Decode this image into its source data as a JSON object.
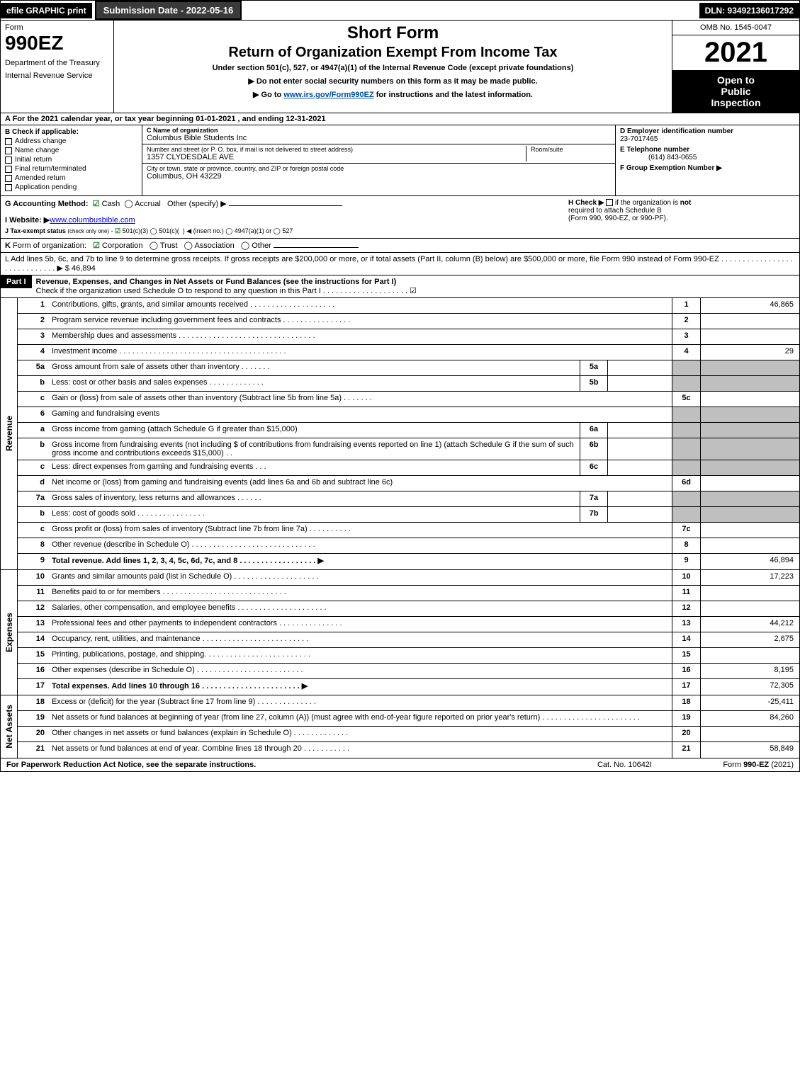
{
  "top": {
    "efile": "efile GRAPHIC print",
    "submission": "Submission Date - 2022-05-16",
    "dln": "DLN: 93492136017292"
  },
  "header": {
    "form_word": "Form",
    "form_num": "990EZ",
    "dept1": "Department of the Treasury",
    "dept2": "Internal Revenue Service",
    "short": "Short Form",
    "title2": "Return of Organization Exempt From Income Tax",
    "sub1": "Under section 501(c), 527, or 4947(a)(1) of the Internal Revenue Code (except private foundations)",
    "sub2": "▶ Do not enter social security numbers on this form as it may be made public.",
    "sub3_pre": "▶ Go to ",
    "sub3_link": "www.irs.gov/Form990EZ",
    "sub3_post": " for instructions and the latest information.",
    "omb": "OMB No. 1545-0047",
    "year": "2021",
    "inspect1": "Open to",
    "inspect2": "Public",
    "inspect3": "Inspection"
  },
  "section_a": "A  For the 2021 calendar year, or tax year beginning 01-01-2021 , and ending 12-31-2021",
  "section_b": {
    "title": "B  Check if applicable:",
    "opts": [
      "Address change",
      "Name change",
      "Initial return",
      "Final return/terminated",
      "Amended return",
      "Application pending"
    ]
  },
  "section_c": {
    "c_label": "C Name of organization",
    "c_value": "Columbus Bible Students Inc",
    "addr_label": "Number and street (or P. O. box, if mail is not delivered to street address)",
    "addr_value": "1357 CLYDESDALE AVE",
    "room_label": "Room/suite",
    "city_label": "City or town, state or province, country, and ZIP or foreign postal code",
    "city_value": "Columbus, OH  43229"
  },
  "section_d": {
    "d_label": "D Employer identification number",
    "d_value": "23-7017465",
    "e_label": "E Telephone number",
    "e_value": "(614) 843-0655",
    "f_label": "F Group Exemption Number  ▶"
  },
  "row_g": {
    "g_label": "G Accounting Method:",
    "g_cash": "Cash",
    "g_accrual": "Accrual",
    "g_other": "Other (specify) ▶",
    "h_label": "H  Check ▶",
    "h_text1": "if the organization is ",
    "h_not": "not",
    "h_text2": " required to attach Schedule B",
    "h_text3": "(Form 990, 990-EZ, or 990-PF)."
  },
  "row_i": {
    "label": "I Website: ▶",
    "value": "www.columbusbible.com"
  },
  "row_j": "J Tax-exempt status (check only one) - ☑ 501(c)(3) ◯ 501(c)(  ) ◀ (insert no.) ◯ 4947(a)(1) or ◯ 527",
  "row_k": "K Form of organization:   ☑ Corporation   ◯ Trust   ◯ Association   ◯ Other",
  "row_l": {
    "text": "L Add lines 5b, 6c, and 7b to line 9 to determine gross receipts. If gross receipts are $200,000 or more, or if total assets (Part II, column (B) below) are $500,000 or more, file Form 990 instead of Form 990-EZ . . . . . . . . . . . . . . . . . . . . . . . . . . . . .  ▶ $",
    "amount": "46,894"
  },
  "part1": {
    "label": "Part I",
    "title": "Revenue, Expenses, and Changes in Net Assets or Fund Balances (see the instructions for Part I)",
    "check": "Check if the organization used Schedule O to respond to any question in this Part I . . . . . . . . . . . . . . . . . . . .   ☑"
  },
  "lines": {
    "revenue": [
      {
        "n": "1",
        "d": "Contributions, gifts, grants, and similar amounts received . . . . . . . . . . . . . . . . . . . .",
        "ln": "1",
        "v": "46,865"
      },
      {
        "n": "2",
        "d": "Program service revenue including government fees and contracts . . . . . . . . . . . . . . . .",
        "ln": "2",
        "v": ""
      },
      {
        "n": "3",
        "d": "Membership dues and assessments . . . . . . . . . . . . . . . . . . . . . . . . . . . . . . . .",
        "ln": "3",
        "v": ""
      },
      {
        "n": "4",
        "d": "Investment income . . . . . . . . . . . . . . . . . . . . . . . . . . . . . . . . . . . . . . .",
        "ln": "4",
        "v": "29"
      },
      {
        "n": "5a",
        "d": "Gross amount from sale of assets other than inventory . . . . . . .",
        "mini": "5a",
        "mv": "",
        "shade": true
      },
      {
        "n": "b",
        "d": "Less: cost or other basis and sales expenses . . . . . . . . . . . . .",
        "mini": "5b",
        "mv": "",
        "shade": true
      },
      {
        "n": "c",
        "d": "Gain or (loss) from sale of assets other than inventory (Subtract line 5b from line 5a) . . . . . . .",
        "ln": "5c",
        "v": ""
      },
      {
        "n": "6",
        "d": "Gaming and fundraising events",
        "shade": true
      },
      {
        "n": "a",
        "d": "Gross income from gaming (attach Schedule G if greater than $15,000)",
        "mini": "6a",
        "mv": "",
        "shade": true
      },
      {
        "n": "b",
        "d": "Gross income from fundraising events (not including $                        of contributions from fundraising events reported on line 1) (attach Schedule G if the sum of such gross income and contributions exceeds $15,000)   . .",
        "mini": "6b",
        "mv": "",
        "shade": true
      },
      {
        "n": "c",
        "d": "Less: direct expenses from gaming and fundraising events   . . .",
        "mini": "6c",
        "mv": "",
        "shade": true
      },
      {
        "n": "d",
        "d": "Net income or (loss) from gaming and fundraising events (add lines 6a and 6b and subtract line 6c)",
        "ln": "6d",
        "v": ""
      },
      {
        "n": "7a",
        "d": "Gross sales of inventory, less returns and allowances . . . . . .",
        "mini": "7a",
        "mv": "",
        "shade": true
      },
      {
        "n": "b",
        "d": "Less: cost of goods sold           . . . . . . . . . . . . . . . .",
        "mini": "7b",
        "mv": "",
        "shade": true
      },
      {
        "n": "c",
        "d": "Gross profit or (loss) from sales of inventory (Subtract line 7b from line 7a) . . . . . . . . . .",
        "ln": "7c",
        "v": ""
      },
      {
        "n": "8",
        "d": "Other revenue (describe in Schedule O) . . . . . . . . . . . . . . . . . . . . . . . . . . . . .",
        "ln": "8",
        "v": ""
      },
      {
        "n": "9",
        "d": "Total revenue. Add lines 1, 2, 3, 4, 5c, 6d, 7c, and 8  . . . . . . . . . . . . . . . . . .   ▶",
        "ln": "9",
        "v": "46,894",
        "bold": true
      }
    ],
    "expenses": [
      {
        "n": "10",
        "d": "Grants and similar amounts paid (list in Schedule O) . . . . . . . . . . . . . . . . . . . .",
        "ln": "10",
        "v": "17,223"
      },
      {
        "n": "11",
        "d": "Benefits paid to or for members    . . . . . . . . . . . . . . . . . . . . . . . . . . . . .",
        "ln": "11",
        "v": ""
      },
      {
        "n": "12",
        "d": "Salaries, other compensation, and employee benefits . . . . . . . . . . . . . . . . . . . . .",
        "ln": "12",
        "v": ""
      },
      {
        "n": "13",
        "d": "Professional fees and other payments to independent contractors . . . . . . . . . . . . . . .",
        "ln": "13",
        "v": "44,212"
      },
      {
        "n": "14",
        "d": "Occupancy, rent, utilities, and maintenance . . . . . . . . . . . . . . . . . . . . . . . . .",
        "ln": "14",
        "v": "2,675"
      },
      {
        "n": "15",
        "d": "Printing, publications, postage, and shipping. . . . . . . . . . . . . . . . . . . . . . . . .",
        "ln": "15",
        "v": ""
      },
      {
        "n": "16",
        "d": "Other expenses (describe in Schedule O)    . . . . . . . . . . . . . . . . . . . . . . . . .",
        "ln": "16",
        "v": "8,195"
      },
      {
        "n": "17",
        "d": "Total expenses. Add lines 10 through 16    . . . . . . . . . . . . . . . . . . . . . . .  ▶",
        "ln": "17",
        "v": "72,305",
        "bold": true
      }
    ],
    "netassets": [
      {
        "n": "18",
        "d": "Excess or (deficit) for the year (Subtract line 17 from line 9)       . . . . . . . . . . . . . .",
        "ln": "18",
        "v": "-25,411"
      },
      {
        "n": "19",
        "d": "Net assets or fund balances at beginning of year (from line 27, column (A)) (must agree with end-of-year figure reported on prior year's return) . . . . . . . . . . . . . . . . . . . . . . .",
        "ln": "19",
        "v": "84,260"
      },
      {
        "n": "20",
        "d": "Other changes in net assets or fund balances (explain in Schedule O) . . . . . . . . . . . . .",
        "ln": "20",
        "v": ""
      },
      {
        "n": "21",
        "d": "Net assets or fund balances at end of year. Combine lines 18 through 20 . . . . . . . . . . .",
        "ln": "21",
        "v": "58,849"
      }
    ]
  },
  "side_labels": {
    "rev": "Revenue",
    "exp": "Expenses",
    "na": "Net Assets"
  },
  "footer": {
    "l": "For Paperwork Reduction Act Notice, see the separate instructions.",
    "m": "Cat. No. 10642I",
    "r_pre": "Form ",
    "r_form": "990-EZ",
    "r_post": " (2021)"
  }
}
